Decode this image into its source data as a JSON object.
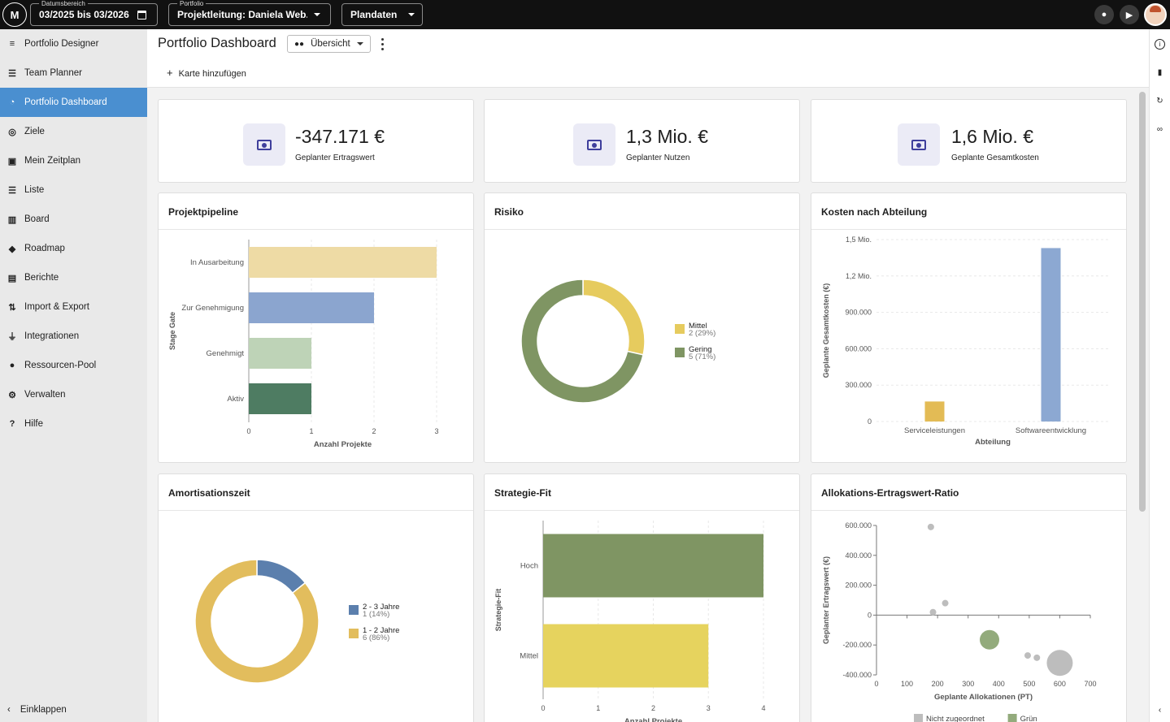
{
  "topbar": {
    "date_range_label": "Datumsbereich",
    "date_range_value": "03/2025 bis 03/2026",
    "portfolio_label": "Portfolio",
    "portfolio_value": "Projektleitung: Daniela Web...",
    "plan_value": "Plandaten",
    "icons": [
      "bell-icon",
      "megaphone-icon",
      "avatar"
    ]
  },
  "sidebar": {
    "items": [
      {
        "label": "Portfolio Designer",
        "icon": "designer-icon",
        "glyph": "≡"
      },
      {
        "label": "Team Planner",
        "icon": "team-planner-icon",
        "glyph": "☰"
      },
      {
        "label": "Portfolio Dashboard",
        "icon": "dashboard-icon",
        "glyph": "◔",
        "active": true
      },
      {
        "label": "Ziele",
        "icon": "target-icon",
        "glyph": "◎"
      },
      {
        "label": "Mein Zeitplan",
        "icon": "schedule-icon",
        "glyph": "▣"
      },
      {
        "label": "Liste",
        "icon": "list-icon",
        "glyph": "☰"
      },
      {
        "label": "Board",
        "icon": "board-icon",
        "glyph": "▥"
      },
      {
        "label": "Roadmap",
        "icon": "roadmap-icon",
        "glyph": "◆"
      },
      {
        "label": "Berichte",
        "icon": "report-icon",
        "glyph": "▤"
      },
      {
        "label": "Import & Export",
        "icon": "import-export-icon",
        "glyph": "⇅"
      },
      {
        "label": "Integrationen",
        "icon": "plug-icon",
        "glyph": "⏚"
      },
      {
        "label": "Ressourcen-Pool",
        "icon": "people-icon",
        "glyph": "●"
      },
      {
        "label": "Verwalten",
        "icon": "gear-icon",
        "glyph": "⚙"
      },
      {
        "label": "Hilfe",
        "icon": "help-icon",
        "glyph": "?"
      }
    ],
    "collapse_label": "Einklappen"
  },
  "header": {
    "title": "Portfolio Dashboard",
    "view_select": "Übersicht",
    "add_card": "Karte hinzufügen"
  },
  "kpis": [
    {
      "value": "-347.171 €",
      "label": "Geplanter Ertragswert"
    },
    {
      "value": "1,3 Mio. €",
      "label": "Geplanter Nutzen"
    },
    {
      "value": "1,6 Mio. €",
      "label": "Geplante Gesamtkosten"
    }
  ],
  "cards": {
    "pipeline": "Projektpipeline",
    "risk": "Risiko",
    "costs": "Kosten nach Abteilung",
    "payback": "Amortisationszeit",
    "strategy": "Strategie-Fit",
    "allocation": "Allokations-Ertragswert-Ratio"
  },
  "chart_data": [
    {
      "type": "bar",
      "orientation": "horizontal",
      "title": "Projektpipeline",
      "ylabel": "Stage Gate",
      "xlabel": "Anzahl Projekte",
      "categories": [
        "In Ausarbeitung",
        "Zur Genehmigung",
        "Genehmigt",
        "Aktiv"
      ],
      "values": [
        3,
        2,
        1,
        1
      ],
      "colors": [
        "#eedba5",
        "#8ba5cf",
        "#bed3b7",
        "#4e7c62"
      ],
      "xlim": [
        0,
        3
      ],
      "xticks": [
        "0",
        "1",
        "2",
        "3"
      ]
    },
    {
      "type": "pie",
      "title": "Risiko",
      "slices": [
        {
          "name": "Mittel",
          "value": 2,
          "label": "2 (29%)",
          "color": "#e6cb5e"
        },
        {
          "name": "Gering",
          "value": 5,
          "label": "5 (71%)",
          "color": "#7f9563"
        }
      ],
      "legend": "right"
    },
    {
      "type": "bar",
      "title": "Kosten nach Abteilung",
      "xlabel": "Abteilung",
      "ylabel": "Geplante Gesamtkosten (€)",
      "categories": [
        "Serviceleistungen",
        "Softwareentwicklung"
      ],
      "values": [
        165000,
        1430000
      ],
      "colors": [
        "#e3bb55",
        "#8ca8d2"
      ],
      "ylim": [
        0,
        1500000
      ],
      "yticks": [
        "0",
        "300.000",
        "600.000",
        "900.000",
        "1,2 Mio.",
        "1,5 Mio."
      ]
    },
    {
      "type": "pie",
      "title": "Amortisationszeit",
      "slices": [
        {
          "name": "2 - 3 Jahre",
          "value": 1,
          "label": "1 (14%)",
          "color": "#5b7fad"
        },
        {
          "name": "1 - 2 Jahre",
          "value": 6,
          "label": "6 (86%)",
          "color": "#e2bd5d"
        }
      ],
      "legend": "right"
    },
    {
      "type": "bar",
      "orientation": "horizontal",
      "title": "Strategie-Fit",
      "ylabel": "Strategie-Fit",
      "xlabel": "Anzahl Projekte",
      "categories": [
        "Hoch",
        "Mittel"
      ],
      "values": [
        4,
        3
      ],
      "colors": [
        "#7f9563",
        "#e6d35e"
      ],
      "xlim": [
        0,
        4
      ],
      "xticks": [
        "0",
        "1",
        "2",
        "3",
        "4"
      ]
    },
    {
      "type": "scatter",
      "title": "Allokations-Ertragswert-Ratio",
      "xlabel": "Geplante Allokationen (PT)",
      "ylabel": "Geplanter Ertragswert (€)",
      "xlim": [
        0,
        700
      ],
      "ylim": [
        -400000,
        600000
      ],
      "xticks": [
        "0",
        "100",
        "200",
        "300",
        "400",
        "500",
        "600",
        "700"
      ],
      "yticks": [
        "-400.000",
        "-200.000",
        "0",
        "200.000",
        "400.000",
        "600.000"
      ],
      "points": [
        {
          "x": 178,
          "y": 590000,
          "r": 4,
          "series": "Nicht zugeordnet"
        },
        {
          "x": 225,
          "y": 80000,
          "r": 4,
          "series": "Nicht zugeordnet"
        },
        {
          "x": 185,
          "y": 20000,
          "r": 4,
          "series": "Nicht zugeordnet"
        },
        {
          "x": 370,
          "y": -165000,
          "r": 12,
          "series": "Grün"
        },
        {
          "x": 495,
          "y": -270000,
          "r": 4,
          "series": "Nicht zugeordnet"
        },
        {
          "x": 525,
          "y": -285000,
          "r": 4,
          "series": "Nicht zugeordnet"
        },
        {
          "x": 600,
          "y": -320000,
          "r": 16,
          "series": "Nicht zugeordnet"
        }
      ],
      "series": [
        {
          "name": "Nicht zugeordnet",
          "color": "#bdbdbd"
        },
        {
          "name": "Grün",
          "color": "#93ab7c"
        }
      ],
      "legend": "bottom"
    }
  ]
}
